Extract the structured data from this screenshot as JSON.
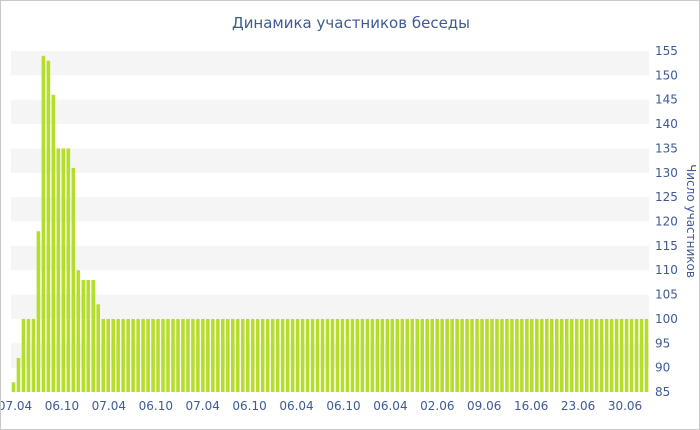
{
  "chart_data": {
    "type": "bar",
    "title": "Динамика участников беседы",
    "ylabel": "Число участников",
    "xlabel": "",
    "ylim": [
      85,
      155
    ],
    "y_ticks": [
      85,
      90,
      95,
      100,
      105,
      110,
      115,
      120,
      125,
      130,
      135,
      140,
      145,
      150,
      155
    ],
    "y_axis_side": "right",
    "x_tick_labels": [
      "07.04",
      "06.10",
      "07.04",
      "06.10",
      "07.04",
      "06.10",
      "06.04",
      "06.10",
      "06.04",
      "02.06",
      "09.06",
      "16.06",
      "23.06",
      "30.06"
    ],
    "grid": "horizontal bands",
    "bar_color": "#b5dd2c",
    "band_color": "#f5f5f5",
    "text_color": "#3e5a94",
    "values": [
      87,
      92,
      100,
      100,
      100,
      118,
      154,
      153,
      146,
      135,
      135,
      135,
      131,
      110,
      108,
      108,
      108,
      103,
      100,
      100,
      100,
      100,
      100,
      100,
      100,
      100,
      100,
      100,
      100,
      100,
      100,
      100,
      100,
      100,
      100,
      100,
      100,
      100,
      100,
      100,
      100,
      100,
      100,
      100,
      100,
      100,
      100,
      100,
      100,
      100,
      100,
      100,
      100,
      100,
      100,
      100,
      100,
      100,
      100,
      100,
      100,
      100,
      100,
      100,
      100,
      100,
      100,
      100,
      100,
      100,
      100,
      100,
      100,
      100,
      100,
      100,
      100,
      100,
      100,
      100,
      100,
      100,
      100,
      100,
      100,
      100,
      100,
      100,
      100,
      100,
      100,
      100,
      100,
      100,
      100,
      100,
      100,
      100,
      100,
      100,
      100,
      100,
      100,
      100,
      100,
      100,
      100,
      100,
      100,
      100,
      100,
      100,
      100,
      100,
      100,
      100,
      100,
      100,
      100,
      100,
      100,
      100,
      100,
      100,
      100,
      100,
      100,
      100
    ]
  }
}
